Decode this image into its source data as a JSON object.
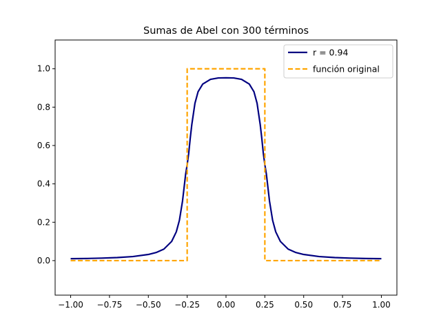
{
  "chart_data": {
    "type": "line",
    "title": "Sumas de Abel con 300 términos",
    "xlabel": "",
    "ylabel": "",
    "xlim": [
      -1.1,
      1.1
    ],
    "ylim": [
      -0.18,
      1.15
    ],
    "x_ticks": [
      -1.0,
      -0.75,
      -0.5,
      -0.25,
      0.0,
      0.25,
      0.5,
      0.75,
      1.0
    ],
    "x_tick_labels": [
      "−1.00",
      "−0.75",
      "−0.50",
      "−0.25",
      "0.00",
      "0.25",
      "0.50",
      "0.75",
      "1.00"
    ],
    "y_ticks": [
      0.0,
      0.2,
      0.4,
      0.6,
      0.8,
      1.0
    ],
    "y_tick_labels": [
      "0.0",
      "0.2",
      "0.4",
      "0.6",
      "0.8",
      "1.0"
    ],
    "grid": false,
    "legend_position": "upper right",
    "series": [
      {
        "name": "r = 0.94",
        "color": "#000080",
        "style": "solid",
        "x": [
          -1.0,
          -0.9,
          -0.8,
          -0.7,
          -0.6,
          -0.5,
          -0.45,
          -0.4,
          -0.35,
          -0.32,
          -0.3,
          -0.28,
          -0.27,
          -0.26,
          -0.25,
          -0.24,
          -0.23,
          -0.22,
          -0.2,
          -0.18,
          -0.15,
          -0.1,
          -0.05,
          0.0,
          0.05,
          0.1,
          0.15,
          0.18,
          0.2,
          0.22,
          0.23,
          0.24,
          0.25,
          0.26,
          0.27,
          0.28,
          0.3,
          0.32,
          0.35,
          0.4,
          0.45,
          0.5,
          0.6,
          0.7,
          0.8,
          0.9,
          1.0
        ],
        "values": [
          0.01,
          0.011,
          0.013,
          0.016,
          0.021,
          0.032,
          0.042,
          0.06,
          0.1,
          0.15,
          0.21,
          0.31,
          0.38,
          0.45,
          0.5,
          0.56,
          0.64,
          0.71,
          0.82,
          0.88,
          0.92,
          0.945,
          0.952,
          0.953,
          0.952,
          0.945,
          0.92,
          0.88,
          0.82,
          0.71,
          0.64,
          0.56,
          0.5,
          0.45,
          0.38,
          0.31,
          0.21,
          0.15,
          0.1,
          0.06,
          0.042,
          0.032,
          0.021,
          0.016,
          0.013,
          0.011,
          0.01
        ]
      },
      {
        "name": "función original",
        "color": "#FFA500",
        "style": "dashed",
        "x": [
          -1.0,
          -0.25,
          -0.25,
          0.25,
          0.25,
          1.0
        ],
        "values": [
          0.0,
          0.0,
          1.0,
          1.0,
          0.0,
          0.0
        ]
      }
    ]
  }
}
